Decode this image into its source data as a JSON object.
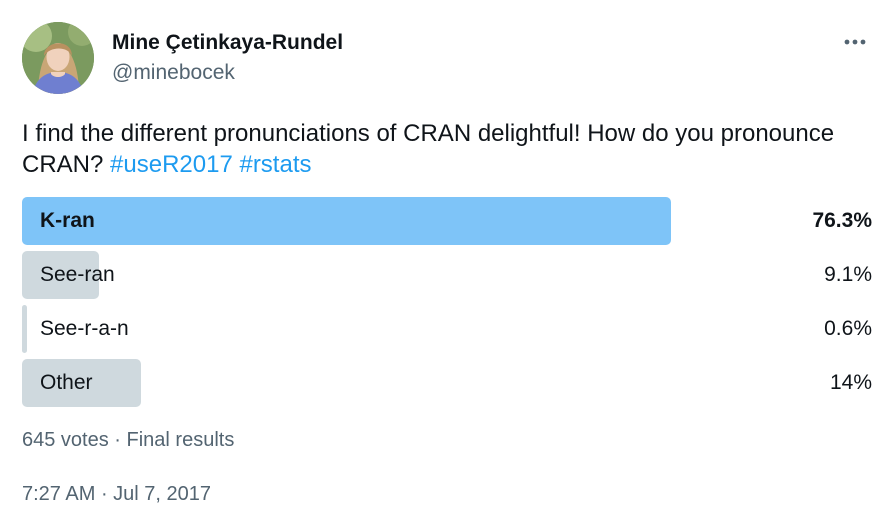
{
  "author": {
    "display_name": "Mine Çetinkaya-Rundel",
    "handle": "@minebocek"
  },
  "more_icon": "more-horizontal-icon",
  "tweet": {
    "text": "I find the different pronunciations of CRAN delightful! How do you pronounce CRAN? ",
    "hashtags": [
      "#useR2017",
      "#rstats"
    ]
  },
  "poll": {
    "options": [
      {
        "label": "K-ran",
        "percent": "76.3%",
        "value": 76.3,
        "winner": true
      },
      {
        "label": "See-ran",
        "percent": "9.1%",
        "value": 9.1,
        "winner": false
      },
      {
        "label": "See-r-a-n",
        "percent": "0.6%",
        "value": 0.6,
        "winner": false
      },
      {
        "label": "Other",
        "percent": "14%",
        "value": 14,
        "winner": false
      }
    ],
    "votes": "645 votes",
    "separator": " · ",
    "status": "Final results"
  },
  "timestamp": {
    "time": "7:27 AM",
    "separator": " · ",
    "date": "Jul 7, 2017"
  },
  "colors": {
    "winner_fill": "#7ec4f8",
    "option_fill": "#cfd9de",
    "hashtag": "#1d9bf0",
    "secondary_text": "#536471"
  }
}
